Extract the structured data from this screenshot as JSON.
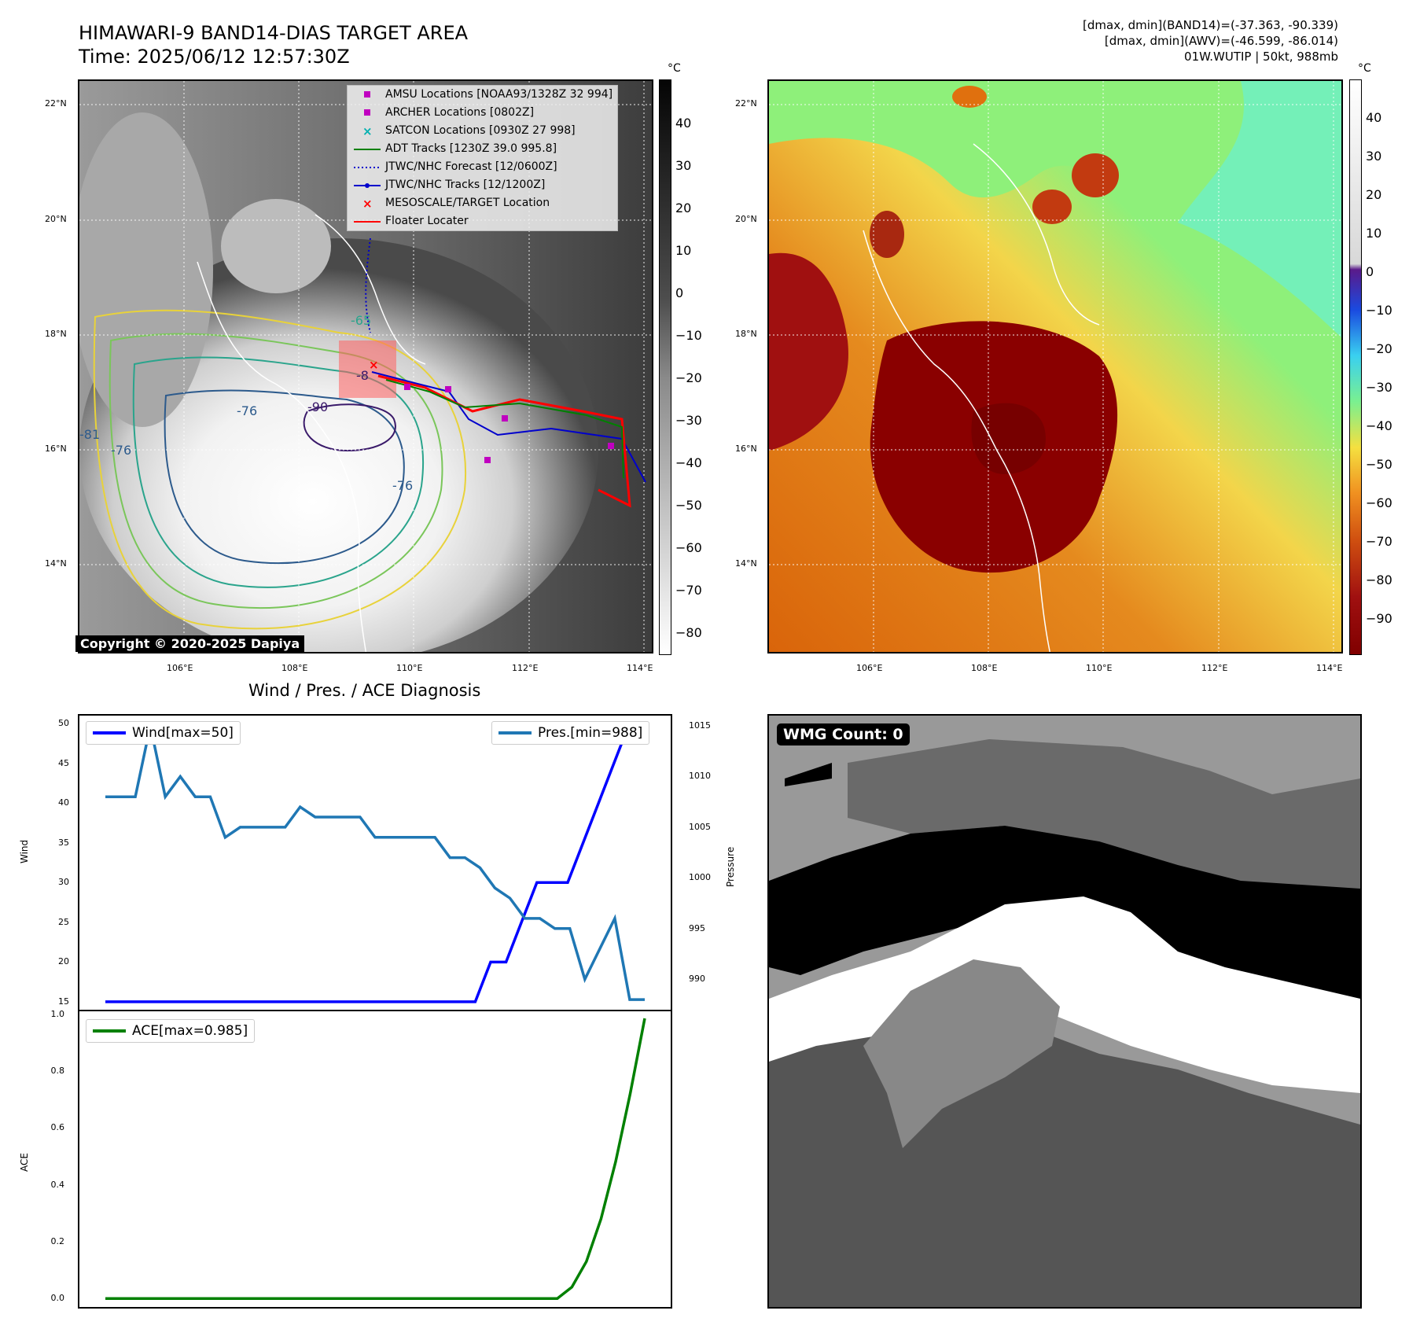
{
  "header": {
    "title": "HIMAWARI-9 BAND14-DIAS TARGET AREA",
    "time": "Time: 2025/06/12 12:57:30Z",
    "info_line1": "[dmax, dmin](BAND14)=(-37.363, -90.339)",
    "info_line2": "[dmax, dmin](AWV)=(-46.599, -86.014)",
    "info_line3": "01W.WUTIP | 50kt, 988mb"
  },
  "map": {
    "lat_labels": [
      "22°N",
      "20°N",
      "18°N",
      "16°N",
      "14°N"
    ],
    "lon_labels": [
      "106°E",
      "108°E",
      "110°E",
      "112°E",
      "114°E"
    ],
    "copyright": "Copyright © 2020-2025 Dapiya",
    "legend": [
      {
        "label": "AMSU Locations [NOAA93/1328Z 32 994]",
        "symbol": "square",
        "color": "#c000c0"
      },
      {
        "label": "ARCHER Locations [0802Z]",
        "symbol": "square",
        "color": "#c000c0"
      },
      {
        "label": "SATCON Locations [0930Z 27 998]",
        "symbol": "x",
        "color": "#00b0b0"
      },
      {
        "label": "ADT Tracks [1230Z 39.0 995.8]",
        "symbol": "line",
        "color": "#008000"
      },
      {
        "label": "JTWC/NHC Forecast [12/0600Z]",
        "symbol": "dotted",
        "color": "#0000cc"
      },
      {
        "label": "JTWC/NHC Tracks [12/1200Z]",
        "symbol": "dotline",
        "color": "#0000cc"
      },
      {
        "label": "MESOSCALE/TARGET Location",
        "symbol": "x",
        "color": "#ff0000"
      },
      {
        "label": "Floater Locater",
        "symbol": "line",
        "color": "#ff0000"
      }
    ],
    "contour_labels": [
      "-76",
      "-81",
      "-76",
      "-90",
      "-76",
      "-65",
      "-8"
    ],
    "colorbar_left": {
      "unit": "°C",
      "ticks": [
        "40",
        "30",
        "20",
        "10",
        "0",
        "−10",
        "−20",
        "−30",
        "−40",
        "−50",
        "−60",
        "−70",
        "−80"
      ]
    },
    "colorbar_right": {
      "unit": "°C",
      "ticks": [
        "40",
        "30",
        "20",
        "10",
        "0",
        "−10",
        "−20",
        "−30",
        "−40",
        "−50",
        "−60",
        "−70",
        "−80",
        "−90"
      ]
    }
  },
  "diagnosis": {
    "title": "Wind / Pres. / ACE Diagnosis",
    "wind_axis_label": "Wind",
    "pressure_axis_label": "Pressure",
    "ace_axis_label": "ACE",
    "wind_legend": "Wind[max=50]",
    "pres_legend": "Pres.[min=988]",
    "ace_legend": "ACE[max=0.985]",
    "colors": {
      "wind": "#0000ff",
      "pressure": "#1f77b4",
      "ace": "#008000"
    }
  },
  "wmg": {
    "label": "WMG Count: 0"
  },
  "chart_data": [
    {
      "type": "line",
      "name": "wind",
      "ylabel": "Wind",
      "ylim": [
        14,
        51
      ],
      "yticks": [
        15,
        20,
        25,
        30,
        35,
        40,
        45,
        50
      ],
      "series": [
        {
          "name": "Wind[max=50]",
          "values": [
            15,
            15,
            15,
            15,
            15,
            15,
            15,
            15,
            15,
            15,
            15,
            15,
            15,
            15,
            15,
            15,
            15,
            15,
            15,
            15,
            15,
            15,
            15,
            15,
            15,
            20,
            20,
            25,
            30,
            30,
            30,
            35,
            40,
            45,
            50,
            50
          ]
        }
      ]
    },
    {
      "type": "line",
      "name": "pressure",
      "ylabel": "Pressure",
      "ylim": [
        987,
        1016
      ],
      "yticks": [
        990,
        995,
        1000,
        1005,
        1010,
        1015
      ],
      "series": [
        {
          "name": "Pres.[min=988]",
          "values": [
            1008,
            1008,
            1008,
            1015,
            1008,
            1010,
            1008,
            1008,
            1004,
            1005,
            1005,
            1005,
            1005,
            1007,
            1006,
            1006,
            1006,
            1006,
            1004,
            1004,
            1004,
            1004,
            1004,
            1002,
            1002,
            1001,
            999,
            998,
            996,
            996,
            995,
            995,
            990,
            993,
            996,
            988,
            988
          ]
        }
      ]
    },
    {
      "type": "line",
      "name": "ace",
      "ylabel": "ACE",
      "ylim": [
        -0.03,
        1.01
      ],
      "yticks": [
        0.0,
        0.2,
        0.4,
        0.6,
        0.8,
        1.0
      ],
      "series": [
        {
          "name": "ACE[max=0.985]",
          "values": [
            0,
            0,
            0,
            0,
            0,
            0,
            0,
            0,
            0,
            0,
            0,
            0,
            0,
            0,
            0,
            0,
            0,
            0,
            0,
            0,
            0,
            0,
            0,
            0,
            0,
            0,
            0,
            0,
            0,
            0,
            0,
            0,
            0.04,
            0.13,
            0.28,
            0.48,
            0.72,
            0.985
          ]
        }
      ]
    }
  ]
}
